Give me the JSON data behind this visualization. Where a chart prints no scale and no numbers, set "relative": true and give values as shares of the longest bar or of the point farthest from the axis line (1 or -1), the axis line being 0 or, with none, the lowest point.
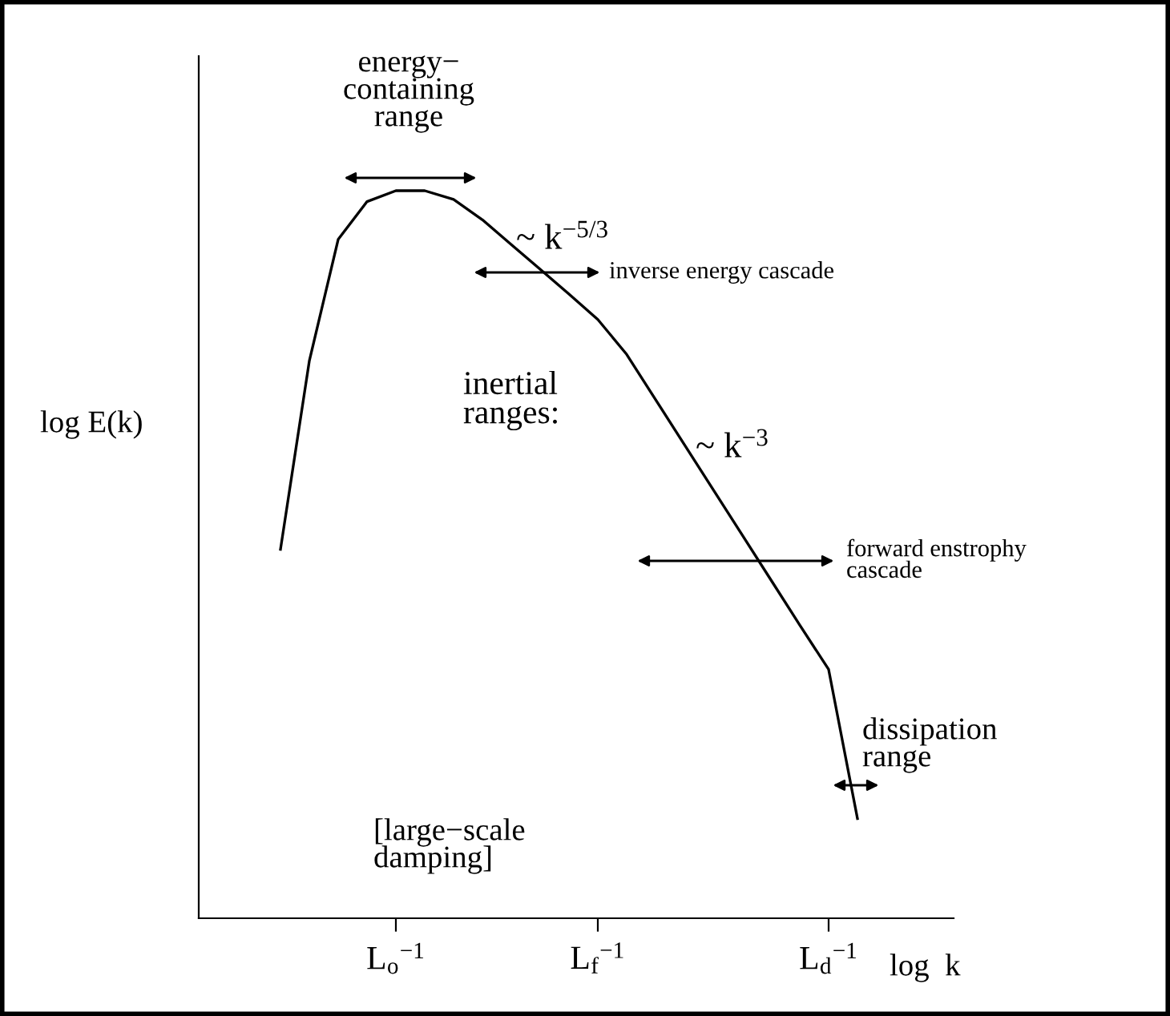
{
  "chart_data": {
    "type": "line",
    "relative": true,
    "color": "#000000",
    "tick_labels": "x",
    "categories": [
      null,
      null,
      null,
      null,
      null,
      null,
      "L$_{o}$$^{−1}$",
      null,
      null,
      null,
      null,
      null,
      null,
      "L$_{f}$$^{−1}$",
      null,
      null,
      null,
      null,
      null,
      null,
      null,
      "L$_{d}$$^{−1}$",
      null,
      null,
      null,
      null
    ],
    "values": [
      null,
      null,
      0.507,
      0.766,
      0.933,
      0.985,
      1,
      1,
      0.988,
      0.96,
      0.926,
      0.892,
      0.858,
      0.823,
      0.775,
      0.713,
      0.651,
      0.589,
      0.527,
      0.465,
      0.403,
      0.342,
      0.137,
      null,
      null,
      null
    ],
    "xlabel": "log  k",
    "ylabel": "log E(k)",
    "annotations": [
      "energy−\ncontaining\nrange",
      "~ k$^{−5/3}$",
      "inverse energy cascade",
      "inertial\nranges:",
      "~ k$^{−3}$",
      "forward enstrophy\ncascade",
      "dissipation\nrange",
      "[large−scale\ndamping]"
    ]
  }
}
